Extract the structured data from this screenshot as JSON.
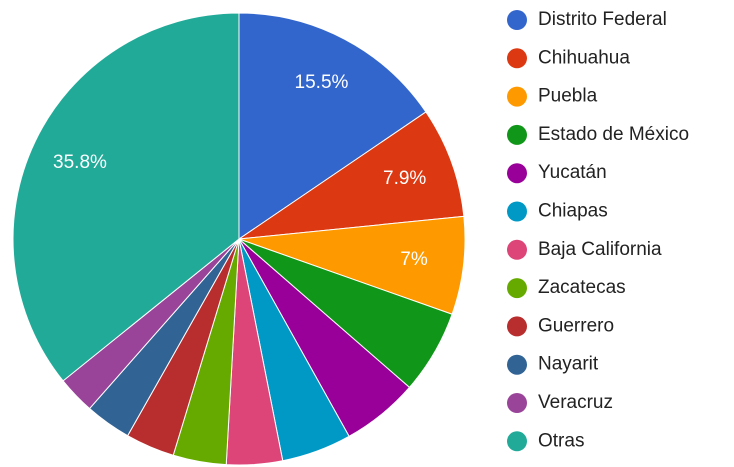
{
  "chart_data": {
    "type": "pie",
    "categories": [
      "Distrito Federal",
      "Chihuahua",
      "Puebla",
      "Estado de México",
      "Yucatán",
      "Chiapas",
      "Baja California",
      "Zacatecas",
      "Guerrero",
      "Nayarit",
      "Veracruz",
      "Otras"
    ],
    "values": [
      15.5,
      7.9,
      7,
      6,
      5.5,
      5,
      4,
      3.8,
      3.5,
      3.3,
      2.7,
      35.8
    ],
    "value_labels": [
      "15.5%",
      "7.9%",
      "7%",
      null,
      null,
      null,
      null,
      null,
      null,
      null,
      null,
      "35.8%"
    ],
    "colors": [
      "#3366cc",
      "#dc3912",
      "#ff9900",
      "#109618",
      "#990099",
      "#0099c6",
      "#dd4477",
      "#66aa00",
      "#b82e2e",
      "#316395",
      "#994499",
      "#22aa99"
    ],
    "legend": "right"
  }
}
